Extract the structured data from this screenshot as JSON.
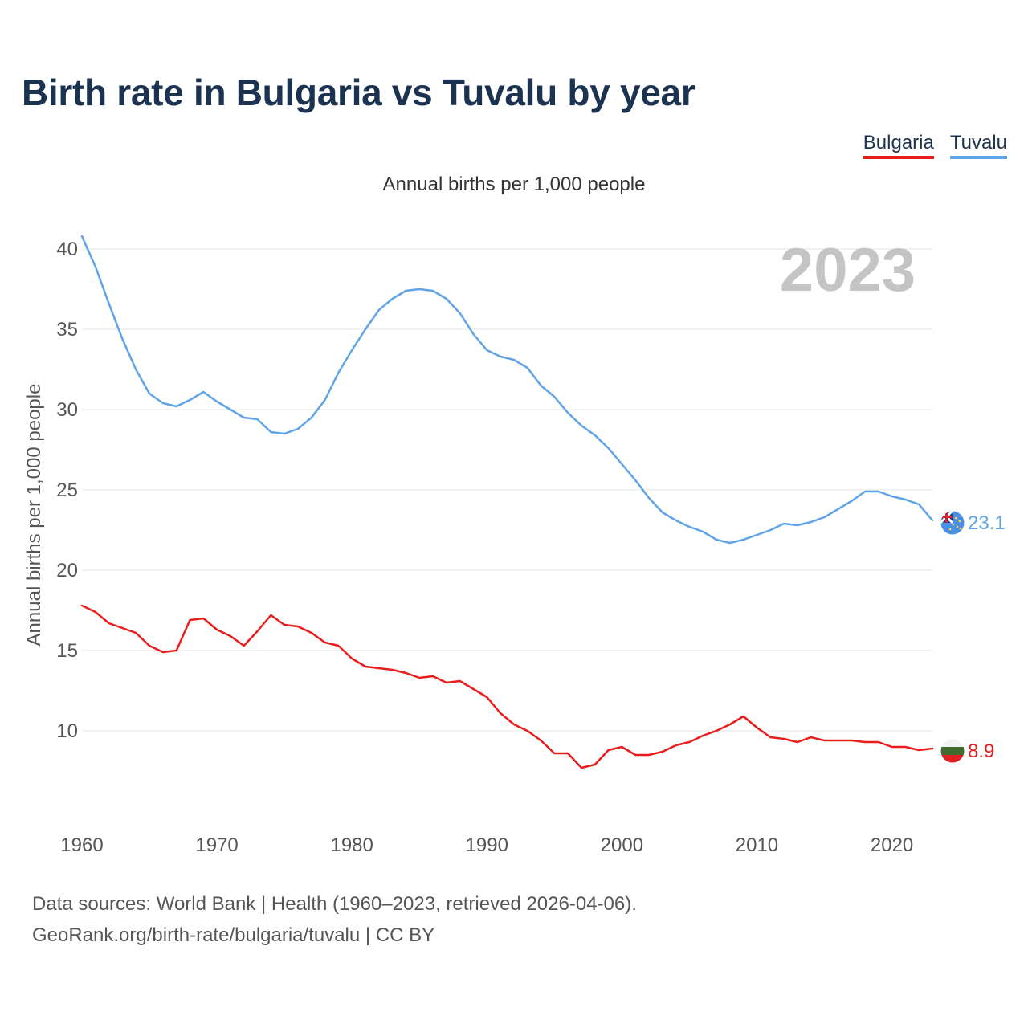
{
  "title": "Birth rate in Bulgaria vs Tuvalu by year",
  "subtitle": "Annual births per 1,000 people",
  "legend": [
    {
      "label": "Bulgaria",
      "color": "#ea1d1d"
    },
    {
      "label": "Tuvalu",
      "color": "#5fa3e8"
    }
  ],
  "source": {
    "line1": "Data sources: World Bank | Health (1960–2023, retrieved 2026-04-06).",
    "line2": "GeoRank.org/birth-rate/bulgaria/tuvalu | CC BY"
  },
  "chart_data": {
    "type": "line",
    "title": "Birth rate in Bulgaria vs Tuvalu by year",
    "xlabel": "",
    "ylabel": "Annual births per 1,000 people",
    "year_watermark": "2023",
    "xlim": [
      1960,
      2023
    ],
    "ylim": [
      5,
      41
    ],
    "x_ticks": [
      1960,
      1970,
      1980,
      1990,
      2000,
      2010,
      2020
    ],
    "y_ticks": [
      10,
      15,
      20,
      25,
      30,
      35,
      40
    ],
    "grid": true,
    "legend_position": "top-right",
    "x": [
      1960,
      1961,
      1962,
      1963,
      1964,
      1965,
      1966,
      1967,
      1968,
      1969,
      1970,
      1971,
      1972,
      1973,
      1974,
      1975,
      1976,
      1977,
      1978,
      1979,
      1980,
      1981,
      1982,
      1983,
      1984,
      1985,
      1986,
      1987,
      1988,
      1989,
      1990,
      1991,
      1992,
      1993,
      1994,
      1995,
      1996,
      1997,
      1998,
      1999,
      2000,
      2001,
      2002,
      2003,
      2004,
      2005,
      2006,
      2007,
      2008,
      2009,
      2010,
      2011,
      2012,
      2013,
      2014,
      2015,
      2016,
      2017,
      2018,
      2019,
      2020,
      2021,
      2022,
      2023
    ],
    "series": [
      {
        "name": "Tuvalu",
        "color": "#5fa3e8",
        "end_label": "23.1",
        "values": [
          40.8,
          38.9,
          36.6,
          34.4,
          32.5,
          31.0,
          30.4,
          30.2,
          30.6,
          31.1,
          30.5,
          30.0,
          29.5,
          29.4,
          28.6,
          28.5,
          28.8,
          29.5,
          30.6,
          32.3,
          33.7,
          35.0,
          36.2,
          36.9,
          37.4,
          37.5,
          37.4,
          36.9,
          36.0,
          34.7,
          33.7,
          33.3,
          33.1,
          32.6,
          31.5,
          30.8,
          29.8,
          29.0,
          28.4,
          27.6,
          26.6,
          25.6,
          24.5,
          23.6,
          23.1,
          22.7,
          22.4,
          21.9,
          21.7,
          21.9,
          22.2,
          22.5,
          22.9,
          22.8,
          23.0,
          23.3,
          23.8,
          24.3,
          24.9,
          24.9,
          24.6,
          24.4,
          24.1,
          23.1
        ]
      },
      {
        "name": "Bulgaria",
        "color": "#ea1d1d",
        "end_label": "8.9",
        "values": [
          17.8,
          17.4,
          16.7,
          16.4,
          16.1,
          15.3,
          14.9,
          15.0,
          16.9,
          17.0,
          16.3,
          15.9,
          15.3,
          16.2,
          17.2,
          16.6,
          16.5,
          16.1,
          15.5,
          15.3,
          14.5,
          14.0,
          13.9,
          13.8,
          13.6,
          13.3,
          13.4,
          13.0,
          13.1,
          12.6,
          12.1,
          11.1,
          10.4,
          10.0,
          9.4,
          8.6,
          8.6,
          7.7,
          7.9,
          8.8,
          9.0,
          8.5,
          8.5,
          8.7,
          9.1,
          9.3,
          9.7,
          10.0,
          10.4,
          10.9,
          10.2,
          9.6,
          9.5,
          9.3,
          9.6,
          9.4,
          9.4,
          9.4,
          9.3,
          9.3,
          9.0,
          9.0,
          8.8,
          8.9
        ]
      }
    ]
  }
}
